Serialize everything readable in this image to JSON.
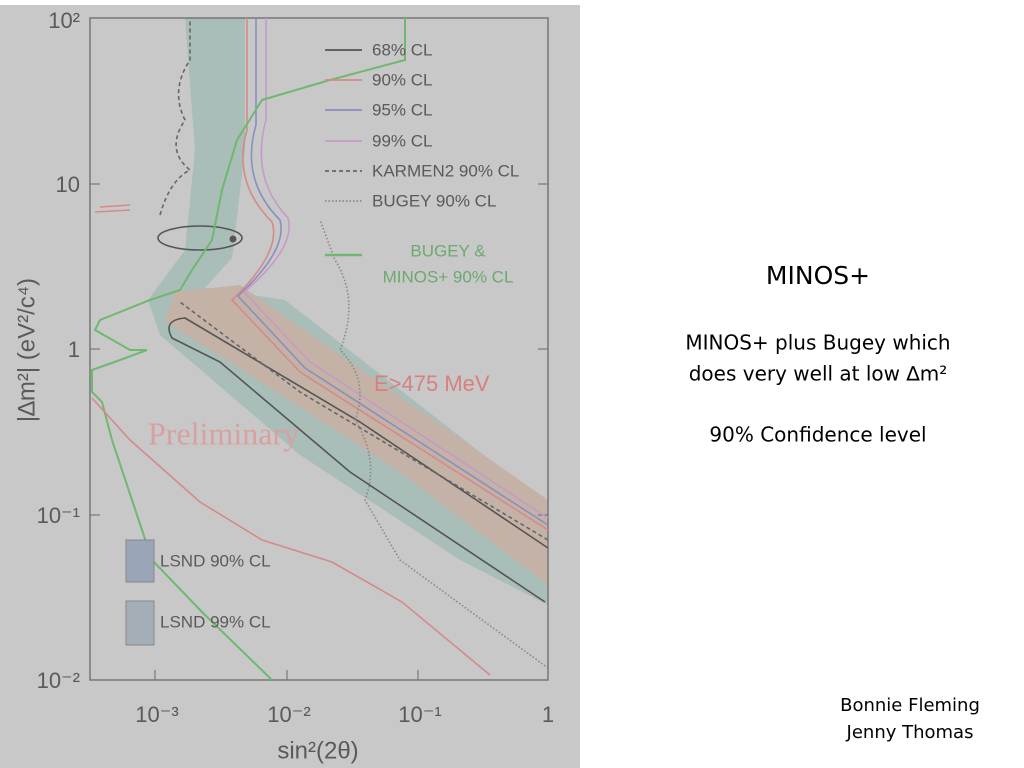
{
  "slide": {
    "title": "MINOS+",
    "body": [
      "MINOS+ plus Bugey which",
      "does very well at low ∆m²",
      "90% Confidence level"
    ],
    "authors": [
      "Bonnie Fleming",
      "Jenny Thomas"
    ]
  },
  "figure": {
    "y_label": "|∆m²| (eV²/c⁴)",
    "x_label": "sin²(2θ)",
    "y_tick_labels": [
      "10²",
      "10",
      "1",
      "10⁻¹",
      "10⁻²"
    ],
    "x_tick_labels": [
      "10⁻³",
      "10⁻²",
      "10⁻¹",
      "1"
    ],
    "legend": [
      "68% CL",
      "90% CL",
      "95% CL",
      "99% CL",
      "KARMEN2 90% CL",
      "BUGEY 90% CL",
      "BUGEY &",
      "MINOS+ 90% CL"
    ],
    "annotations": [
      "E>475 MeV",
      "Preliminary",
      "LSND 90% CL",
      "LSND 99% CL"
    ]
  }
}
